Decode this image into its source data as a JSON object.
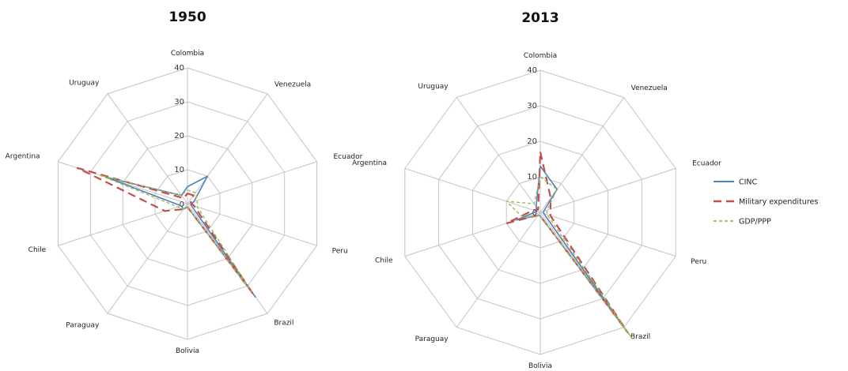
{
  "chart_data": {
    "type": "radar",
    "categories": [
      "Colombia",
      "Venezuela",
      "Ecuador",
      "Peru",
      "Brazil",
      "Bolivia",
      "Paraguay",
      "Chile",
      "Argentina",
      "Uruguay"
    ],
    "rlim": [
      0,
      40
    ],
    "ticks": [
      "0",
      "10",
      "20",
      "30",
      "40"
    ],
    "colors": {
      "CINC": "#4f81bd",
      "Military expenditures": "#c0504d",
      "GDP/PPP": "#9bbb59"
    },
    "legend": [
      "CINC",
      "Military expenditures",
      "GDP/PPP"
    ],
    "legend_position": "right",
    "grid": true,
    "charts": [
      {
        "title": "1950",
        "series": [
          {
            "name": "CINC",
            "values": [
              5,
              10,
              2,
              1,
              34,
              1,
              2,
              2,
              25,
              3
            ]
          },
          {
            "name": "Military expenditures",
            "values": [
              3,
              3,
              1,
              2,
              33,
              1,
              2,
              7,
              34,
              2
            ]
          },
          {
            "name": "GDP/PPP",
            "values": [
              4,
              4,
              3,
              3,
              32,
              1,
              2,
              3,
              27,
              3
            ]
          }
        ]
      },
      {
        "title": "2013",
        "series": [
          {
            "name": "CINC",
            "values": [
              13,
              8,
              1,
              1,
              42,
              1,
              1,
              7,
              1,
              2
            ]
          },
          {
            "name": "Military expenditures",
            "values": [
              17,
              5,
              3,
              3,
              42,
              1,
              1,
              10,
              2,
              1
            ]
          },
          {
            "name": "GDP/PPP",
            "values": [
              10,
              8,
              2,
              2,
              44,
              1,
              1,
              5,
              10,
              3
            ]
          }
        ]
      }
    ]
  }
}
